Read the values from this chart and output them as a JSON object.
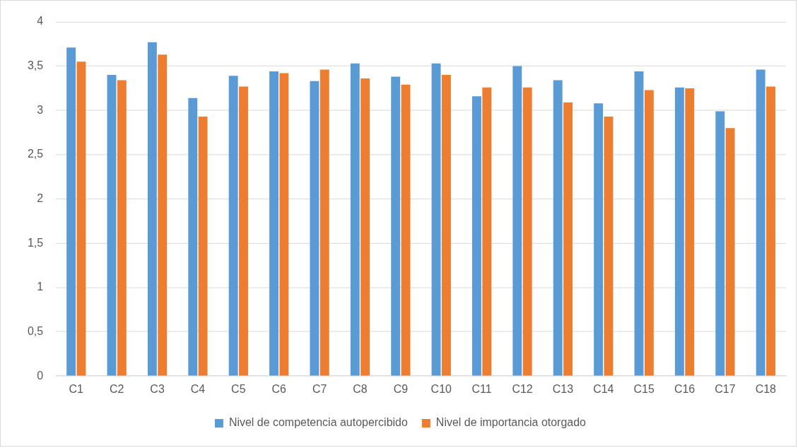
{
  "chart_data": {
    "type": "bar",
    "categories": [
      "C1",
      "C2",
      "C3",
      "C4",
      "C5",
      "C6",
      "C7",
      "C8",
      "C9",
      "C10",
      "C11",
      "C12",
      "C13",
      "C14",
      "C15",
      "C16",
      "C17",
      "C18"
    ],
    "series": [
      {
        "name": "Nivel de competencia autopercibido",
        "color": "#5b9bd5",
        "values": [
          3.71,
          3.4,
          3.77,
          3.14,
          3.39,
          3.44,
          3.33,
          3.53,
          3.38,
          3.53,
          3.16,
          3.5,
          3.34,
          3.08,
          3.44,
          3.26,
          2.99,
          3.46
        ]
      },
      {
        "name": "Nivel de importancia otorgado",
        "color": "#ed7d31",
        "values": [
          3.55,
          3.34,
          3.63,
          2.93,
          3.27,
          3.42,
          3.46,
          3.36,
          3.29,
          3.4,
          3.26,
          3.26,
          3.09,
          2.93,
          3.23,
          3.25,
          2.8,
          3.27
        ]
      }
    ],
    "ylim": [
      0,
      4
    ],
    "yticks": [
      0,
      {
        "value": 0.5,
        "label": "0,5"
      },
      1,
      {
        "value": 1.5,
        "label": "1,5"
      },
      2,
      {
        "value": 2.5,
        "label": "2,5"
      },
      3,
      {
        "value": 3.5,
        "label": "3,5"
      },
      4
    ],
    "grid": "y",
    "legend": "bottom"
  }
}
